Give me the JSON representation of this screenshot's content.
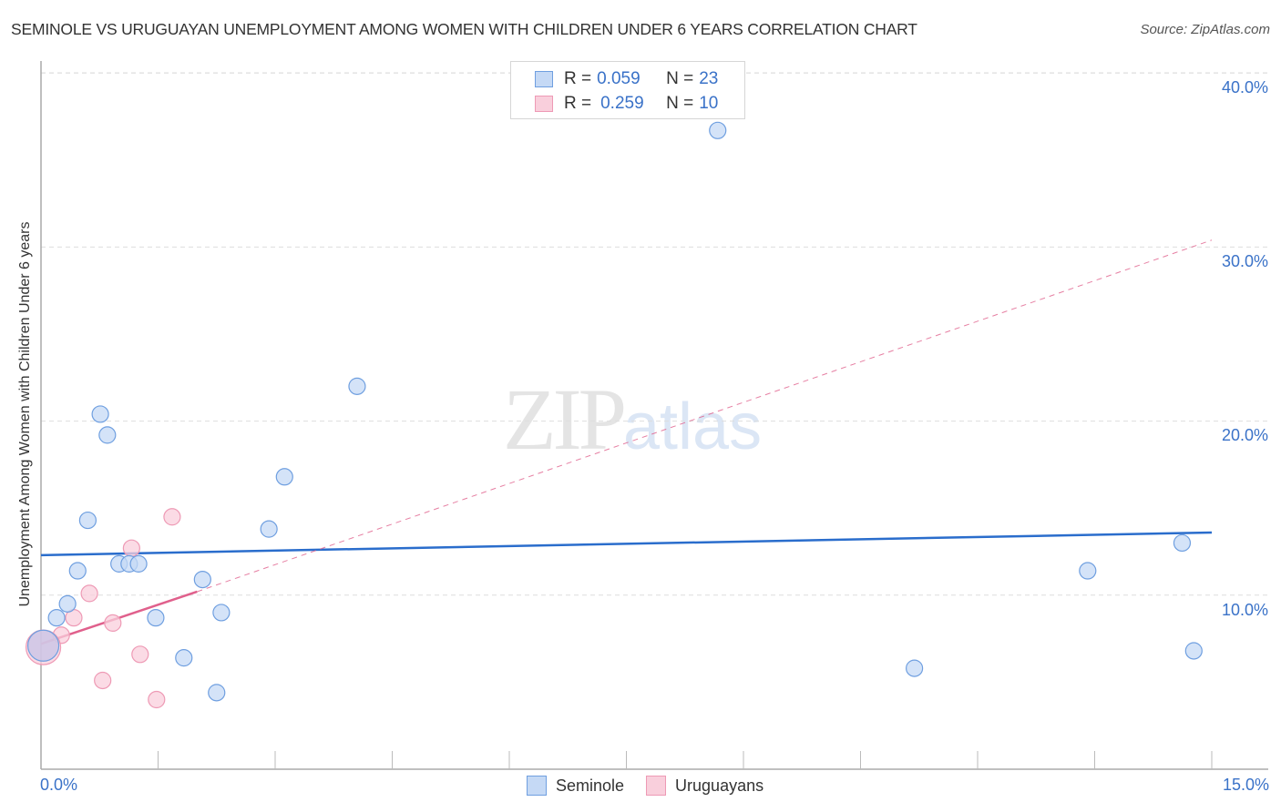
{
  "header": {
    "title": "SEMINOLE VS URUGUAYAN UNEMPLOYMENT AMONG WOMEN WITH CHILDREN UNDER 6 YEARS CORRELATION CHART",
    "source": "Source: ZipAtlas.com"
  },
  "watermark": {
    "part1": "ZIP",
    "part2": "atlas"
  },
  "legend_top": {
    "rows": [
      {
        "r_label": "R =",
        "r_value": "0.059",
        "n_label": "N =",
        "n_value": "23"
      },
      {
        "r_label": "R =",
        "r_value": "0.259",
        "n_label": "N =",
        "n_value": "10"
      }
    ]
  },
  "legend_bottom": {
    "items": [
      {
        "label": "Seminole"
      },
      {
        "label": "Uruguayans"
      }
    ]
  },
  "axes": {
    "ylabel": "Unemployment Among Women with Children Under 6 years",
    "yticks": [
      "40.0%",
      "30.0%",
      "20.0%",
      "10.0%"
    ],
    "xticks": [
      "0.0%",
      "15.0%"
    ]
  },
  "colors": {
    "seminole_fill": "#c5d9f5",
    "seminole_stroke": "#6f9fe0",
    "seminole_line": "#2a6dcc",
    "uruguayans_fill": "#f9cfdc",
    "uruguayans_stroke": "#ee9ab5",
    "uruguayans_line": "#e0608c",
    "tick_text": "#3a72c8"
  },
  "chart_data": {
    "type": "scatter",
    "title": "SEMINOLE VS URUGUAYAN UNEMPLOYMENT AMONG WOMEN WITH CHILDREN UNDER 6 YEARS CORRELATION CHART",
    "xlabel": "",
    "ylabel": "Unemployment Among Women with Children Under 6 years",
    "xlim": [
      0,
      15
    ],
    "ylim": [
      0,
      42
    ],
    "x_unit": "%",
    "y_unit": "%",
    "yticks": [
      10,
      20,
      30,
      40
    ],
    "xticks": [
      0,
      15
    ],
    "grid": "horizontal dashed",
    "legend_position": "top-center and bottom-center",
    "series": [
      {
        "name": "Seminole",
        "R": 0.059,
        "N": 23,
        "points": [
          [
            8.67,
            36.7
          ],
          [
            4.05,
            22.0
          ],
          [
            0.76,
            20.4
          ],
          [
            0.85,
            19.2
          ],
          [
            3.12,
            16.8
          ],
          [
            0.6,
            14.3
          ],
          [
            2.92,
            13.8
          ],
          [
            14.62,
            13.0
          ],
          [
            1.0,
            11.8
          ],
          [
            1.13,
            11.8
          ],
          [
            1.25,
            11.8
          ],
          [
            0.47,
            11.4
          ],
          [
            13.41,
            11.4
          ],
          [
            2.07,
            10.9
          ],
          [
            0.34,
            9.5
          ],
          [
            0.2,
            8.7
          ],
          [
            1.47,
            8.7
          ],
          [
            2.31,
            9.0
          ],
          [
            0.03,
            7.1
          ],
          [
            14.77,
            6.8
          ],
          [
            1.83,
            6.4
          ],
          [
            11.19,
            5.8
          ],
          [
            2.25,
            4.4
          ]
        ],
        "trendline": {
          "x": [
            0,
            15
          ],
          "y": [
            12.3,
            13.6
          ],
          "style": "solid"
        }
      },
      {
        "name": "Uruguayans",
        "R": 0.259,
        "N": 10,
        "points": [
          [
            1.68,
            14.5
          ],
          [
            1.16,
            12.7
          ],
          [
            0.62,
            10.1
          ],
          [
            0.42,
            8.7
          ],
          [
            0.92,
            8.4
          ],
          [
            0.26,
            7.7
          ],
          [
            0.03,
            7.0
          ],
          [
            1.27,
            6.6
          ],
          [
            0.79,
            5.1
          ],
          [
            1.48,
            4.0
          ]
        ],
        "trendline": {
          "x": [
            0,
            2.0
          ],
          "y": [
            7.2,
            10.2
          ],
          "style": "solid",
          "extended_dashed_to": [
            15,
            30.4
          ]
        }
      }
    ]
  }
}
